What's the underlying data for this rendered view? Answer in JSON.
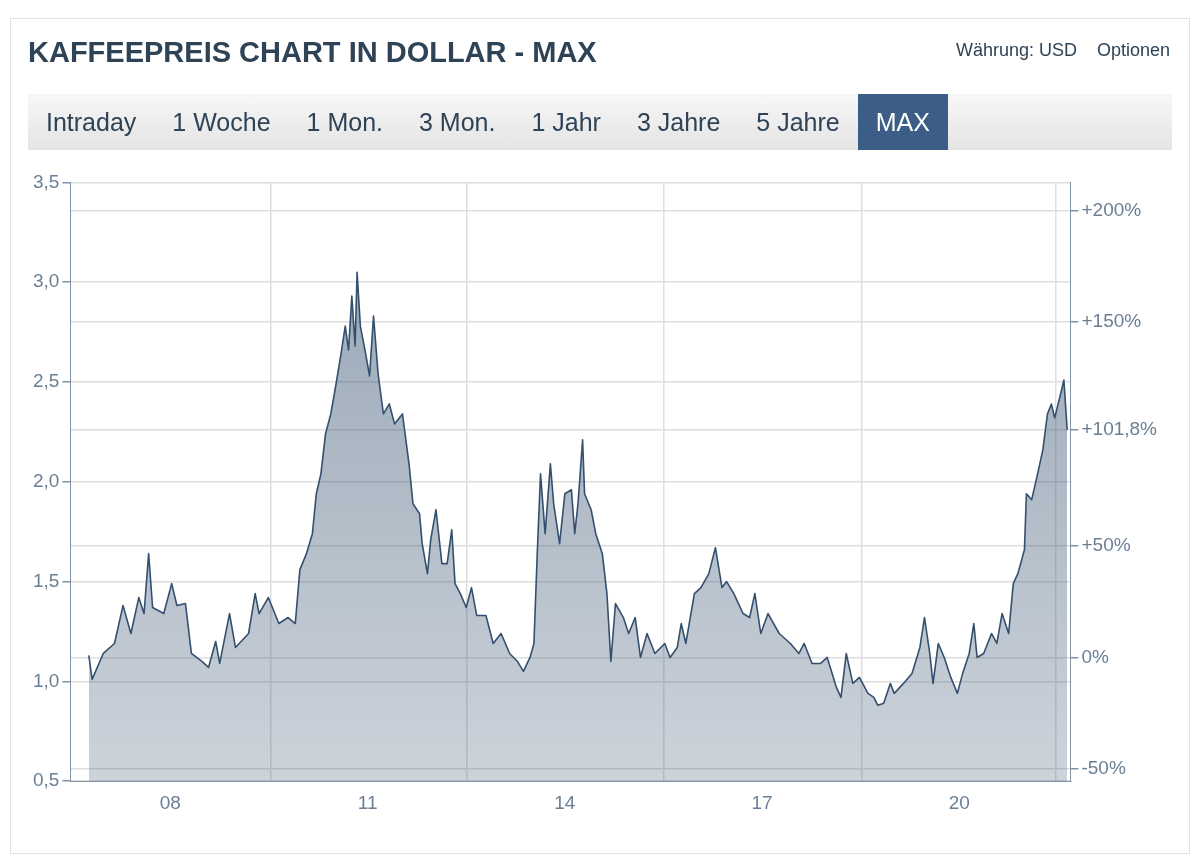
{
  "chart_data": {
    "type": "area",
    "title": "KAFFEEPREIS CHART IN DOLLAR - MAX",
    "annotations": [
      "Währung: USD",
      "Optionen",
      "Intraday",
      "1 Woche",
      "1 Mon.",
      "3 Mon.",
      "1 Jahr",
      "3 Jahre",
      "5 Jahre",
      "MAX"
    ],
    "series": [
      {
        "color": "#34506e",
        "x": [
          2006.76,
          2006.81,
          2006.98,
          2007.15,
          2007.28,
          2007.4,
          2007.52,
          2007.6,
          2007.67,
          2007.73,
          2007.9,
          2008.02,
          2008.1,
          2008.23,
          2008.32,
          2008.48,
          2008.58,
          2008.69,
          2008.75,
          2008.9,
          2008.99,
          2009.19,
          2009.29,
          2009.35,
          2009.49,
          2009.65,
          2009.79,
          2009.9,
          2009.97,
          2010.07,
          2010.16,
          2010.22,
          2010.29,
          2010.36,
          2010.44,
          2010.52,
          2010.59,
          2010.66,
          2010.71,
          2010.76,
          2010.81,
          2010.84,
          2010.89,
          2010.96,
          2011.03,
          2011.09,
          2011.16,
          2011.24,
          2011.33,
          2011.41,
          2011.53,
          2011.63,
          2011.69,
          2011.79,
          2011.83,
          2011.91,
          2011.96,
          2012.04,
          2012.13,
          2012.21,
          2012.28,
          2012.33,
          2012.41,
          2012.5,
          2012.58,
          2012.66,
          2012.8,
          2012.91,
          2013.03,
          2013.16,
          2013.28,
          2013.37,
          2013.47,
          2013.53,
          2013.58,
          2013.63,
          2013.7,
          2013.78,
          2013.83,
          2013.92,
          2014.0,
          2014.1,
          2014.15,
          2014.2,
          2014.27,
          2014.3,
          2014.4,
          2014.47,
          2014.57,
          2014.64,
          2014.7,
          2014.77,
          2014.89,
          2014.97,
          2015.07,
          2015.15,
          2015.25,
          2015.37,
          2015.52,
          2015.6,
          2015.71,
          2015.77,
          2015.84,
          2015.97,
          2016.07,
          2016.19,
          2016.29,
          2016.39,
          2016.46,
          2016.57,
          2016.71,
          2016.81,
          2016.89,
          2016.98,
          2017.09,
          2017.26,
          2017.43,
          2017.56,
          2017.64,
          2017.76,
          2017.89,
          2017.99,
          2018.13,
          2018.2,
          2018.28,
          2018.38,
          2018.48,
          2018.61,
          2018.7,
          2018.76,
          2018.85,
          2018.95,
          2019.01,
          2019.15,
          2019.28,
          2019.4,
          2019.47,
          2019.55,
          2019.6,
          2019.68,
          2019.77,
          2019.87,
          2019.97,
          2020.05,
          2020.15,
          2020.22,
          2020.27,
          2020.37,
          2020.49,
          2020.57,
          2020.65,
          2020.75,
          2020.82,
          2020.89,
          2020.99,
          2021.02,
          2021.1,
          2021.19,
          2021.27,
          2021.34,
          2021.4,
          2021.45,
          2021.54,
          2021.59,
          2021.64
        ],
        "values": [
          1.13,
          1.01,
          1.14,
          1.19,
          1.38,
          1.24,
          1.42,
          1.34,
          1.64,
          1.37,
          1.34,
          1.49,
          1.38,
          1.39,
          1.14,
          1.1,
          1.07,
          1.2,
          1.09,
          1.34,
          1.17,
          1.24,
          1.44,
          1.34,
          1.42,
          1.29,
          1.32,
          1.29,
          1.56,
          1.64,
          1.74,
          1.94,
          2.04,
          2.24,
          2.34,
          2.49,
          2.63,
          2.78,
          2.66,
          2.93,
          2.68,
          3.05,
          2.78,
          2.66,
          2.53,
          2.83,
          2.54,
          2.34,
          2.39,
          2.29,
          2.34,
          2.09,
          1.89,
          1.84,
          1.69,
          1.54,
          1.71,
          1.86,
          1.59,
          1.59,
          1.76,
          1.49,
          1.44,
          1.37,
          1.47,
          1.33,
          1.33,
          1.19,
          1.24,
          1.14,
          1.1,
          1.05,
          1.12,
          1.19,
          1.64,
          2.04,
          1.74,
          2.09,
          1.89,
          1.69,
          1.94,
          1.96,
          1.74,
          1.89,
          2.21,
          1.94,
          1.86,
          1.74,
          1.64,
          1.44,
          1.1,
          1.39,
          1.32,
          1.24,
          1.32,
          1.12,
          1.24,
          1.14,
          1.19,
          1.12,
          1.17,
          1.29,
          1.19,
          1.44,
          1.47,
          1.54,
          1.67,
          1.47,
          1.5,
          1.44,
          1.34,
          1.32,
          1.44,
          1.24,
          1.34,
          1.24,
          1.19,
          1.14,
          1.19,
          1.09,
          1.09,
          1.12,
          0.97,
          0.92,
          1.14,
          0.99,
          1.02,
          0.94,
          0.92,
          0.88,
          0.89,
          0.99,
          0.94,
          0.99,
          1.04,
          1.17,
          1.32,
          1.14,
          0.99,
          1.19,
          1.12,
          1.02,
          0.94,
          1.04,
          1.14,
          1.29,
          1.12,
          1.14,
          1.24,
          1.19,
          1.34,
          1.24,
          1.49,
          1.54,
          1.66,
          1.94,
          1.91,
          2.04,
          2.16,
          2.34,
          2.39,
          2.32,
          2.44,
          2.51,
          2.26
        ]
      }
    ],
    "xlim": [
      2006.48,
      2021.69
    ],
    "xticks": [
      {
        "value": 2008,
        "label": "08"
      },
      {
        "value": 2009.52,
        "label": null
      },
      {
        "value": 2011,
        "label": "11"
      },
      {
        "value": 2012.51,
        "label": null
      },
      {
        "value": 2014,
        "label": "14"
      },
      {
        "value": 2015.5,
        "label": null
      },
      {
        "value": 2017,
        "label": "17"
      },
      {
        "value": 2018.51,
        "label": null
      },
      {
        "value": 2020,
        "label": "20"
      },
      {
        "value": 2021.47,
        "label": null
      }
    ],
    "ylim": [
      0.5,
      3.5
    ],
    "yticks": [
      {
        "value": 0.5,
        "label": "0,5"
      },
      {
        "value": 1,
        "label": "1,0"
      },
      {
        "value": 1.5,
        "label": "1,5"
      },
      {
        "value": 2,
        "label": "2,0"
      },
      {
        "value": 2.5,
        "label": "2,5"
      },
      {
        "value": 3,
        "label": "3,0"
      },
      {
        "value": 3.5,
        "label": "3,5"
      }
    ],
    "y2lim": [
      -55.4,
      212.5
    ],
    "y2ticks": [
      {
        "value": -50,
        "label": "-50%"
      },
      {
        "value": 0,
        "label": "0%"
      },
      {
        "value": 50,
        "label": "+50%"
      },
      {
        "value": 101.8,
        "label": "+101,8%"
      },
      {
        "value": 150,
        "label": "+150%"
      },
      {
        "value": 200,
        "label": "+200%"
      }
    ],
    "grid": true,
    "legend": false,
    "marker": "none",
    "line_style": "solid"
  }
}
